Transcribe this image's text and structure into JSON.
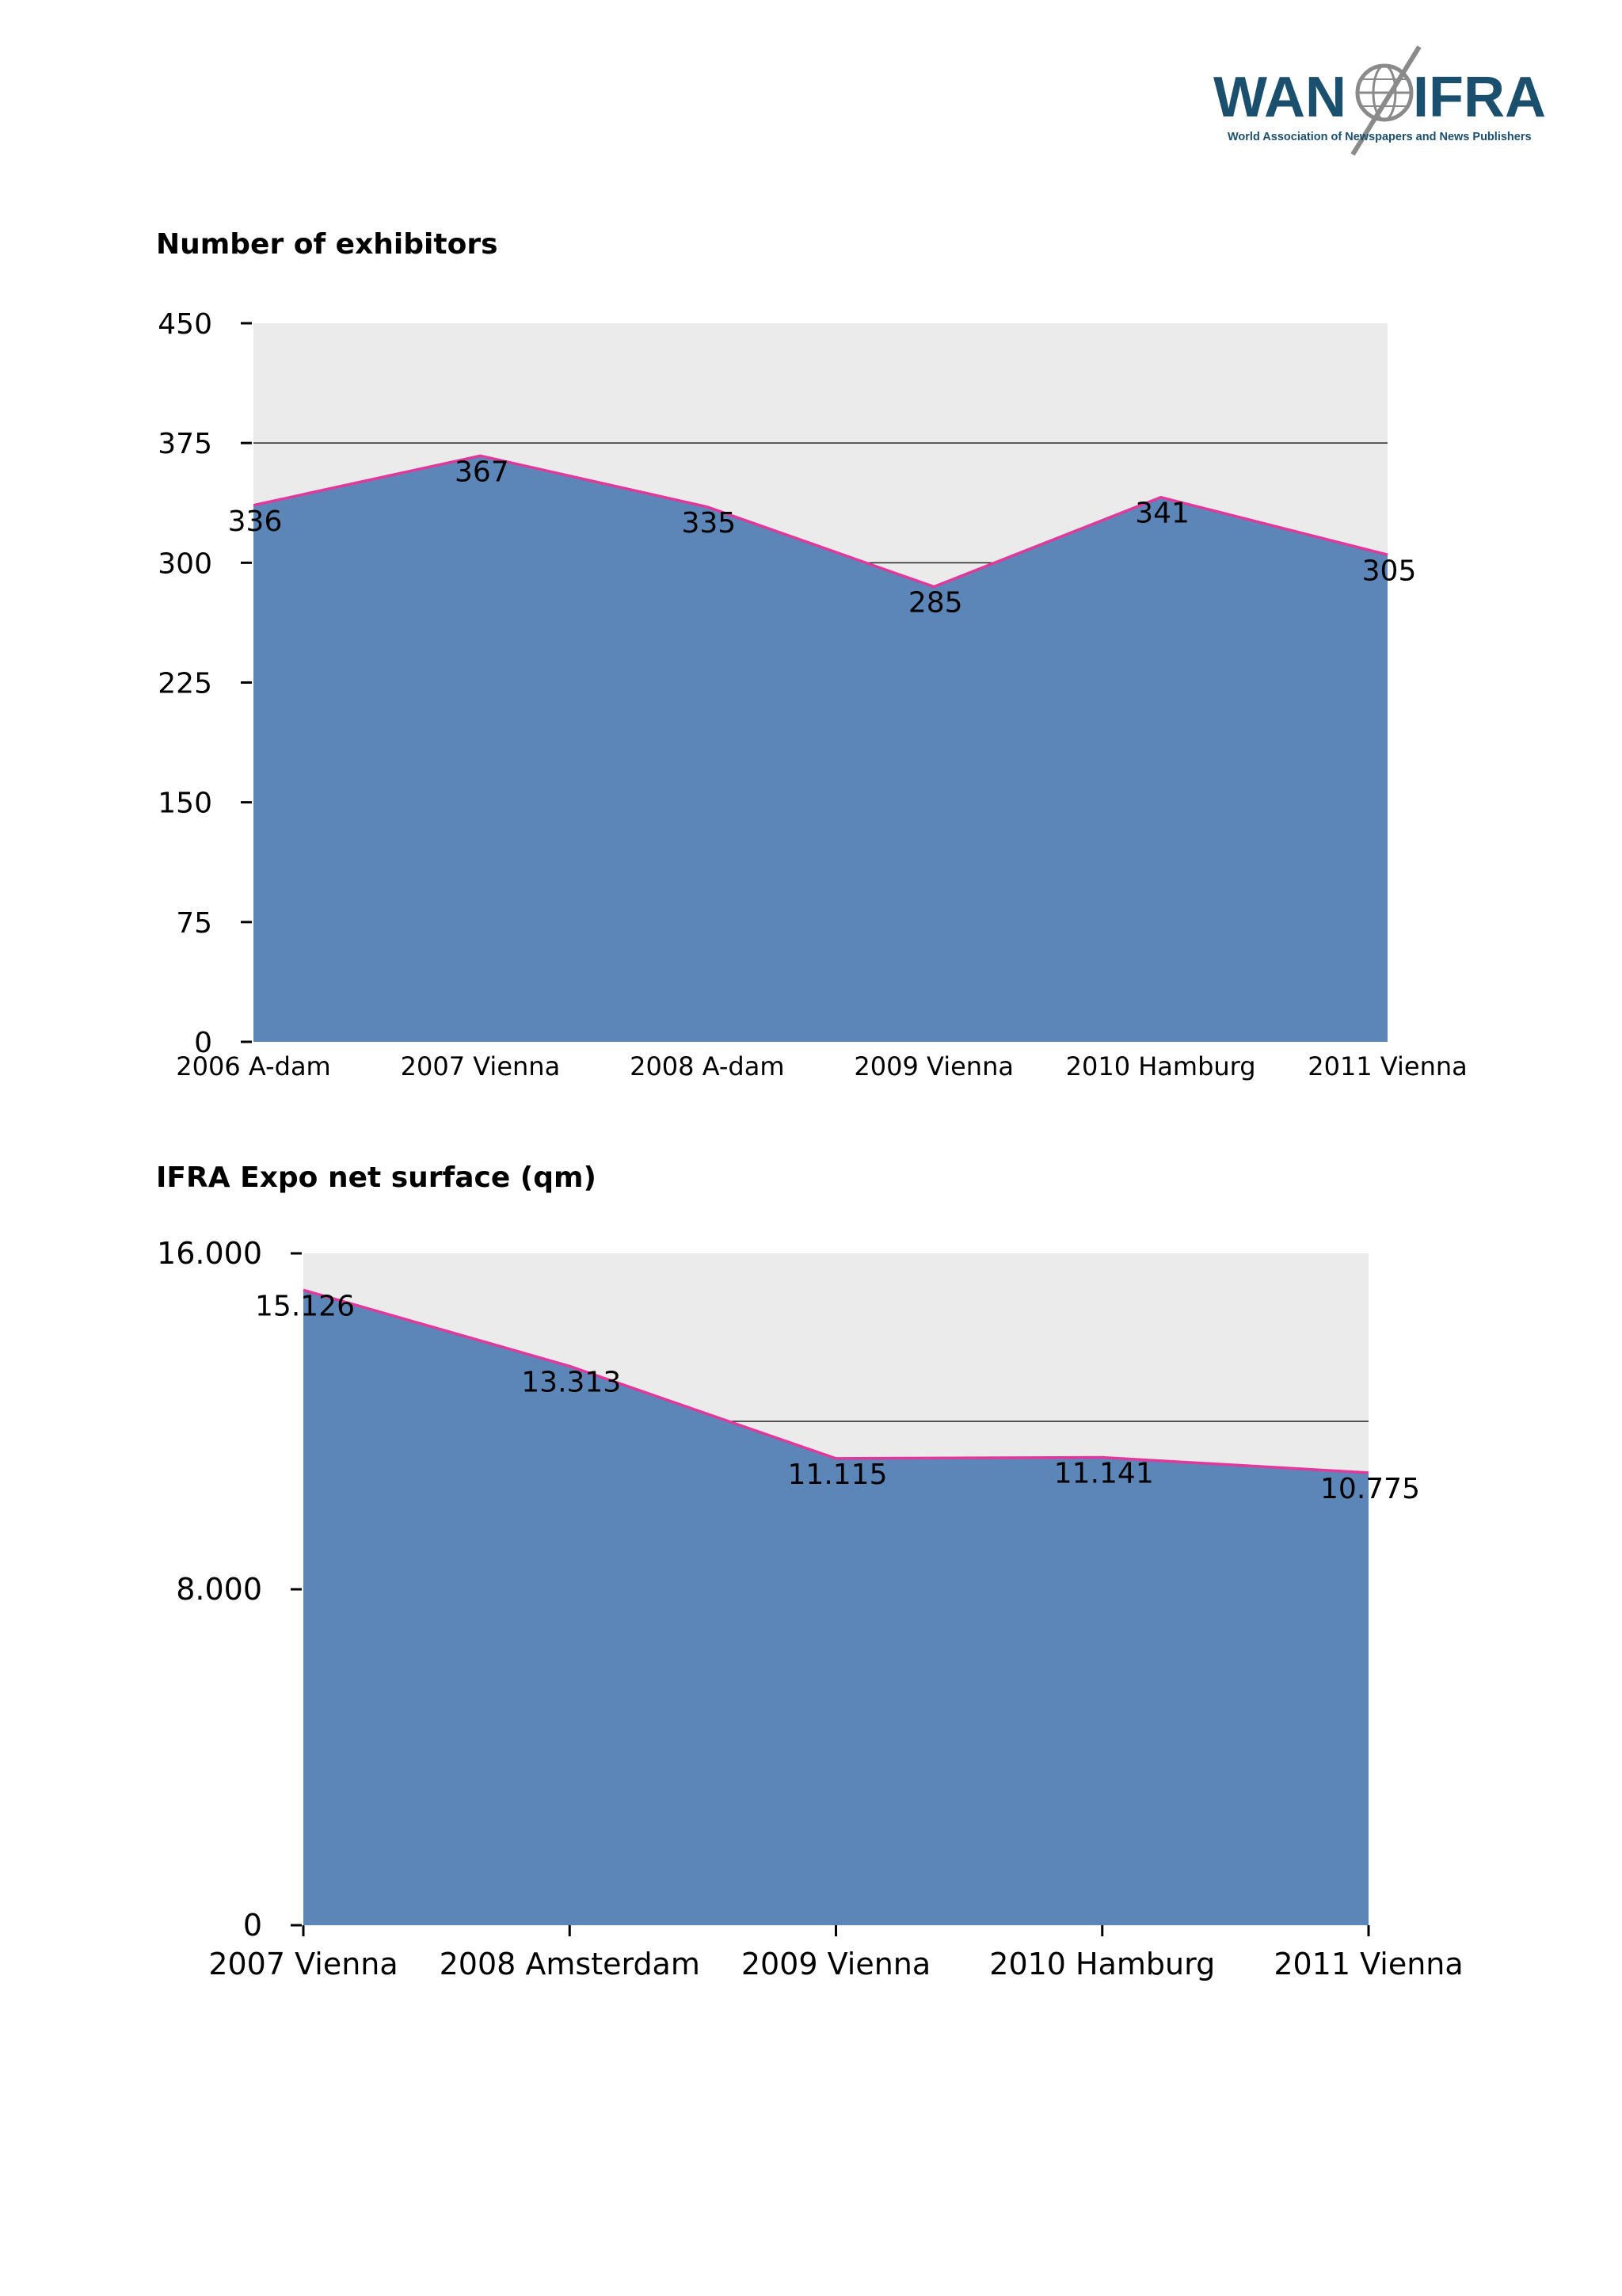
{
  "logo": {
    "wordmark_left": "WAN",
    "wordmark_right": "IFRA",
    "tagline": "World Association of Newspapers and News Publishers",
    "brand_color": "#1b4f6e",
    "globe_color": "#8a8a8a"
  },
  "colors": {
    "area_fill": "#5d86b8",
    "line": "#e0399b",
    "plot_background": "#ecebec"
  },
  "chart_data": [
    {
      "type": "area",
      "title": "Number of exhibitors",
      "categories": [
        "2006 A-dam",
        "2007 Vienna",
        "2008 A-dam",
        "2009 Vienna",
        "2010 Hamburg",
        "2011 Vienna"
      ],
      "values": [
        336,
        367,
        335,
        285,
        341,
        305
      ],
      "data_labels": [
        "336",
        "367",
        "335",
        "285",
        "341",
        "305"
      ],
      "y_ticks": [
        0,
        75,
        150,
        225,
        300,
        375,
        450
      ],
      "y_tick_labels": [
        "0",
        "75",
        "150",
        "225",
        "300",
        "375",
        "450"
      ],
      "ylim": [
        0,
        450
      ],
      "legend": "none"
    },
    {
      "type": "area",
      "title": "IFRA Expo net surface (qm)",
      "categories": [
        "2007 Vienna",
        "2008 Amsterdam",
        "2009 Vienna",
        "2010 Hamburg",
        "2011 Vienna"
      ],
      "values": [
        15126,
        13313,
        11115,
        11141,
        10775
      ],
      "data_labels": [
        "15.126",
        "13.313",
        "11.115",
        "11.141",
        "10.775"
      ],
      "y_ticks": [
        0,
        8000,
        16000
      ],
      "y_tick_labels": [
        "0",
        "8.000",
        "16.000"
      ],
      "ylim": [
        0,
        16000
      ],
      "legend": "none"
    }
  ]
}
